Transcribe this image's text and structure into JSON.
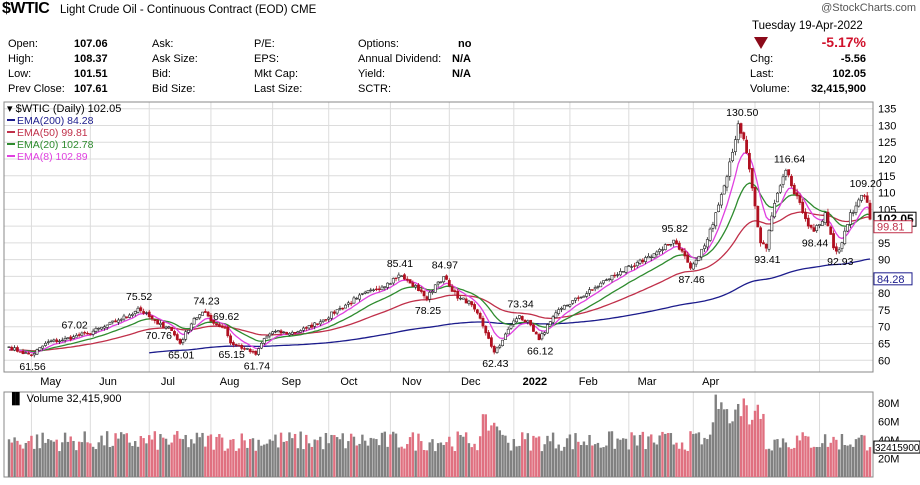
{
  "header": {
    "symbol": "$WTIC",
    "name": "Light Crude Oil - Continuous Contract (EOD) CME",
    "watermark": "@StockCharts.com"
  },
  "quote": {
    "open_label": "Open:",
    "open": "107.06",
    "high_label": "High:",
    "high": "108.37",
    "low_label": "Low:",
    "low": "101.51",
    "prev_close_label": "Prev Close:",
    "prev_close": "107.61",
    "ask_label": "Ask:",
    "ask_size_label": "Ask Size:",
    "bid_label": "Bid:",
    "bid_size_label": "Bid Size:",
    "pe_label": "P/E:",
    "eps_label": "EPS:",
    "mktcap_label": "Mkt Cap:",
    "last_size_label": "Last Size:",
    "options_label": "Options:",
    "options": "no",
    "annual_div_label": "Annual Dividend:",
    "annual_div": "N/A",
    "yield_label": "Yield:",
    "yield": "N/A",
    "sctr_label": "SCTR:"
  },
  "summary": {
    "date": "Tuesday  19-Apr-2022",
    "pct_change": "-5.17%",
    "chg_label": "Chg:",
    "chg": "-5.56",
    "last_label": "Last:",
    "last": "102.05",
    "volume_label": "Volume:",
    "volume": "32,415,900",
    "down_color": "#8b0a1a"
  },
  "chart_data": {
    "type": "candlestick",
    "legend": [
      {
        "label": "$WTIC (Daily) 102.05",
        "color": "#000000"
      },
      {
        "label": "EMA(200) 84.28",
        "color": "#1c1c8c"
      },
      {
        "label": "EMA(50) 99.81",
        "color": "#c0304a"
      },
      {
        "label": "EMA(20) 102.78",
        "color": "#2e8b2e"
      },
      {
        "label": "EMA(8) 102.89",
        "color": "#e040e0"
      }
    ],
    "x_ticks": [
      "May",
      "Jun",
      "Jul",
      "Aug",
      "Sep",
      "Oct",
      "Nov",
      "Dec",
      "2022",
      "Feb",
      "Mar",
      "Apr"
    ],
    "y_ticks": [
      60,
      65,
      70,
      75,
      80,
      85,
      90,
      95,
      100,
      105,
      110,
      115,
      120,
      125,
      130,
      135
    ],
    "ylim": [
      56.5,
      137
    ],
    "price_anchors": [
      [
        0,
        64.0
      ],
      [
        4,
        62.5
      ],
      [
        8,
        61.56
      ],
      [
        14,
        65.5
      ],
      [
        19,
        66.0
      ],
      [
        23,
        67.02
      ],
      [
        28,
        68.0
      ],
      [
        34,
        70.0
      ],
      [
        39,
        72.0
      ],
      [
        43,
        73.5
      ],
      [
        46,
        75.52
      ],
      [
        50,
        73.0
      ],
      [
        53,
        70.76
      ],
      [
        57,
        70.0
      ],
      [
        61,
        65.01
      ],
      [
        66,
        72.5
      ],
      [
        70,
        74.23
      ],
      [
        73,
        71.0
      ],
      [
        77,
        69.62
      ],
      [
        79,
        65.15
      ],
      [
        84,
        63.5
      ],
      [
        88,
        61.74
      ],
      [
        91,
        66.5
      ],
      [
        94,
        68.5
      ],
      [
        100,
        68.0
      ],
      [
        106,
        69.5
      ],
      [
        112,
        72.0
      ],
      [
        118,
        75.5
      ],
      [
        124,
        78.5
      ],
      [
        130,
        81.0
      ],
      [
        135,
        83.0
      ],
      [
        139,
        85.41
      ],
      [
        143,
        83.0
      ],
      [
        147,
        80.5
      ],
      [
        149,
        78.25
      ],
      [
        152,
        82.5
      ],
      [
        155,
        84.97
      ],
      [
        158,
        80.5
      ],
      [
        161,
        78.5
      ],
      [
        165,
        76.5
      ],
      [
        168,
        72.5
      ],
      [
        171,
        66.5
      ],
      [
        173,
        62.43
      ],
      [
        176,
        66.0
      ],
      [
        179,
        70.5
      ],
      [
        182,
        73.34
      ],
      [
        186,
        70.5
      ],
      [
        189,
        66.12
      ],
      [
        193,
        71.5
      ],
      [
        197,
        75.5
      ],
      [
        203,
        78.5
      ],
      [
        208,
        81.0
      ],
      [
        213,
        84.0
      ],
      [
        218,
        86.5
      ],
      [
        223,
        88.0
      ],
      [
        228,
        91.0
      ],
      [
        233,
        93.0
      ],
      [
        237,
        95.82
      ],
      [
        240,
        92.5
      ],
      [
        243,
        87.46
      ],
      [
        246,
        91.0
      ],
      [
        249,
        96.0
      ],
      [
        252,
        104.0
      ],
      [
        255,
        112.0
      ],
      [
        258,
        122.0
      ],
      [
        260,
        130.5
      ],
      [
        262,
        126.0
      ],
      [
        264,
        117.0
      ],
      [
        266,
        106.0
      ],
      [
        268,
        95.0
      ],
      [
        270,
        93.41
      ],
      [
        272,
        103.0
      ],
      [
        275,
        112.0
      ],
      [
        277,
        116.64
      ],
      [
        279,
        112.0
      ],
      [
        281,
        109.0
      ],
      [
        283,
        104.0
      ],
      [
        285,
        100.0
      ],
      [
        287,
        98.44
      ],
      [
        289,
        100.5
      ],
      [
        291,
        104.0
      ],
      [
        293,
        97.5
      ],
      [
        294,
        93.5
      ],
      [
        296,
        92.93
      ],
      [
        298,
        98.5
      ],
      [
        300,
        104.0
      ],
      [
        302,
        106.0
      ],
      [
        304,
        109.2
      ],
      [
        306,
        107.06
      ],
      [
        307,
        102.05
      ]
    ],
    "price_labels": [
      {
        "text": "67.02",
        "x": 23,
        "y": 67.02,
        "pos": "above"
      },
      {
        "text": "61.56",
        "x": 8,
        "y": 61.56,
        "pos": "below"
      },
      {
        "text": "75.52",
        "x": 46,
        "y": 75.52,
        "pos": "above"
      },
      {
        "text": "70.76",
        "x": 53,
        "y": 70.76,
        "pos": "below"
      },
      {
        "text": "74.23",
        "x": 70,
        "y": 74.23,
        "pos": "above"
      },
      {
        "text": "65.01",
        "x": 61,
        "y": 65.01,
        "pos": "below"
      },
      {
        "text": "69.62",
        "x": 77,
        "y": 69.62,
        "pos": "above"
      },
      {
        "text": "65.15",
        "x": 79,
        "y": 65.15,
        "pos": "below"
      },
      {
        "text": "61.74",
        "x": 88,
        "y": 61.74,
        "pos": "below"
      },
      {
        "text": "85.41",
        "x": 139,
        "y": 85.41,
        "pos": "above"
      },
      {
        "text": "84.97",
        "x": 155,
        "y": 84.97,
        "pos": "above"
      },
      {
        "text": "78.25",
        "x": 149,
        "y": 78.25,
        "pos": "below"
      },
      {
        "text": "73.34",
        "x": 182,
        "y": 73.34,
        "pos": "above"
      },
      {
        "text": "62.43",
        "x": 173,
        "y": 62.43,
        "pos": "below"
      },
      {
        "text": "66.12",
        "x": 189,
        "y": 66.12,
        "pos": "below"
      },
      {
        "text": "95.82",
        "x": 237,
        "y": 95.82,
        "pos": "above"
      },
      {
        "text": "87.46",
        "x": 243,
        "y": 87.46,
        "pos": "below"
      },
      {
        "text": "130.50",
        "x": 260,
        "y": 130.5,
        "pos": "above"
      },
      {
        "text": "93.41",
        "x": 270,
        "y": 93.41,
        "pos": "below"
      },
      {
        "text": "116.64",
        "x": 277,
        "y": 116.64,
        "pos": "above"
      },
      {
        "text": "98.44",
        "x": 287,
        "y": 98.44,
        "pos": "below"
      },
      {
        "text": "92.93",
        "x": 296,
        "y": 92.93,
        "pos": "below"
      },
      {
        "text": "109.20",
        "x": 304,
        "y": 109.2,
        "pos": "above"
      }
    ],
    "last_price_tag": "102.05",
    "ema_tags": [
      {
        "text": "99.81",
        "color": "#c0304a",
        "value": 99.81
      },
      {
        "text": "84.28",
        "color": "#1c1c8c",
        "value": 84.28
      }
    ],
    "volume": {
      "label": "Volume 32,415,900",
      "y_ticks": [
        "80M",
        "60M",
        "40M",
        "20M"
      ],
      "y_tick_values": [
        80,
        60,
        40,
        20
      ],
      "ylim": [
        0,
        92
      ],
      "last_tag": "32415900",
      "up_color": "#808080",
      "down_color": "#e07080"
    }
  }
}
